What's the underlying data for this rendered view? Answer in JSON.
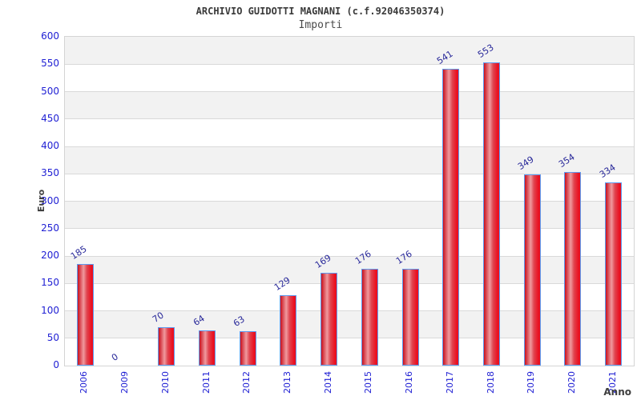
{
  "chart_data": {
    "type": "bar",
    "title": "ARCHIVIO GUIDOTTI MAGNANI (c.f.92046350374)",
    "subtitle": "Importi",
    "xlabel": "Anno",
    "ylabel": "Euro",
    "categories": [
      "2006",
      "2009",
      "2010",
      "2011",
      "2012",
      "2013",
      "2014",
      "2015",
      "2016",
      "2017",
      "2018",
      "2019",
      "2020",
      "2021"
    ],
    "values": [
      185,
      0,
      70,
      64,
      63,
      129,
      169,
      176,
      176,
      541,
      553,
      349,
      354,
      334
    ],
    "ylim": [
      0,
      600
    ],
    "ytick_step": 50,
    "ytick_labels": [
      "0",
      "50",
      "100",
      "150",
      "200",
      "250",
      "300",
      "350",
      "400",
      "450",
      "500",
      "550",
      "600"
    ],
    "grid": true,
    "legend_position": "none",
    "colors": {
      "bar_edge_left": "#c9101d",
      "bar_highlight": "#f09a9e",
      "bar_mid_right": "#e04550",
      "bar_edge_right": "#ea1020",
      "bar_border": "#5d9bf0",
      "tick_label_blue": "#2121d4",
      "value_label_navy": "#29299a",
      "band_gray": "#f2f2f2",
      "band_white": "#ffffff",
      "gridline": "#d9d9d9",
      "title_color": "#3a3a3a"
    }
  }
}
